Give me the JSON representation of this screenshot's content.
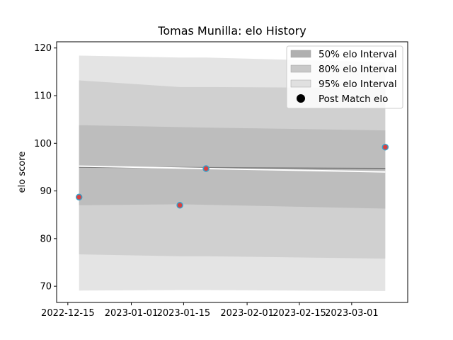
{
  "chart_data": {
    "type": "area",
    "title": "Tomas Munilla: elo History",
    "xlabel": "",
    "ylabel": "elo score",
    "x_ticks": [
      "2022-12-15",
      "2023-01-01",
      "2023-01-15",
      "2023-02-01",
      "2023-02-15",
      "2023-03-01"
    ],
    "x_tick_dates": [
      "2022-12-15",
      "2023-01-01",
      "2023-01-15",
      "2023-02-01",
      "2023-02-15",
      "2023-03-01"
    ],
    "xlim": [
      "2022-12-12",
      "2023-03-16"
    ],
    "y_ticks": [
      70,
      80,
      90,
      100,
      110,
      120
    ],
    "ylim": [
      66.6,
      121.3
    ],
    "grid": false,
    "legend_position": "top-right",
    "legend": [
      {
        "label": "50% elo Interval",
        "kind": "patch",
        "color": "#b0b0b0"
      },
      {
        "label": "80% elo Interval",
        "kind": "patch",
        "color": "#c8c8c8"
      },
      {
        "label": "95% elo Interval",
        "kind": "patch",
        "color": "#e0e0e0"
      },
      {
        "label": "Post Match elo",
        "kind": "marker",
        "color": "#000000"
      }
    ],
    "bands": [
      {
        "name": "95% elo Interval",
        "color": "#e4e4e4",
        "x": [
          "2022-12-18",
          "2023-01-14",
          "2023-01-21",
          "2023-03-10"
        ],
        "upper": [
          118.4,
          118.0,
          118.0,
          117.0
        ],
        "lower": [
          69.1,
          69.2,
          69.2,
          69.0
        ]
      },
      {
        "name": "80% elo Interval",
        "color": "#d0d0d0",
        "x": [
          "2022-12-18",
          "2023-01-14",
          "2023-01-21",
          "2023-03-10"
        ],
        "upper": [
          113.2,
          111.8,
          111.8,
          111.6
        ],
        "lower": [
          76.7,
          76.3,
          76.3,
          75.8
        ]
      },
      {
        "name": "50% elo Interval",
        "color": "#bdbdbd",
        "x": [
          "2022-12-18",
          "2023-01-14",
          "2023-01-21",
          "2023-03-10"
        ],
        "upper": [
          103.8,
          103.4,
          103.3,
          102.7
        ],
        "lower": [
          87.0,
          87.2,
          87.1,
          86.3
        ]
      }
    ],
    "mean_line": {
      "color": "#808080",
      "x": [
        "2022-12-18",
        "2023-03-10"
      ],
      "y": [
        95.0,
        94.7
      ]
    },
    "white_line": {
      "color": "#ffffff",
      "x": [
        "2022-12-18",
        "2023-03-10"
      ],
      "y": [
        95.2,
        94.0
      ]
    },
    "points": {
      "name": "Post Match elo",
      "fill": "#d94040",
      "edge": "#3aa0c8",
      "x": [
        "2022-12-18",
        "2023-01-14",
        "2023-01-21",
        "2023-03-10"
      ],
      "y": [
        88.7,
        87.0,
        94.7,
        99.2
      ]
    }
  }
}
